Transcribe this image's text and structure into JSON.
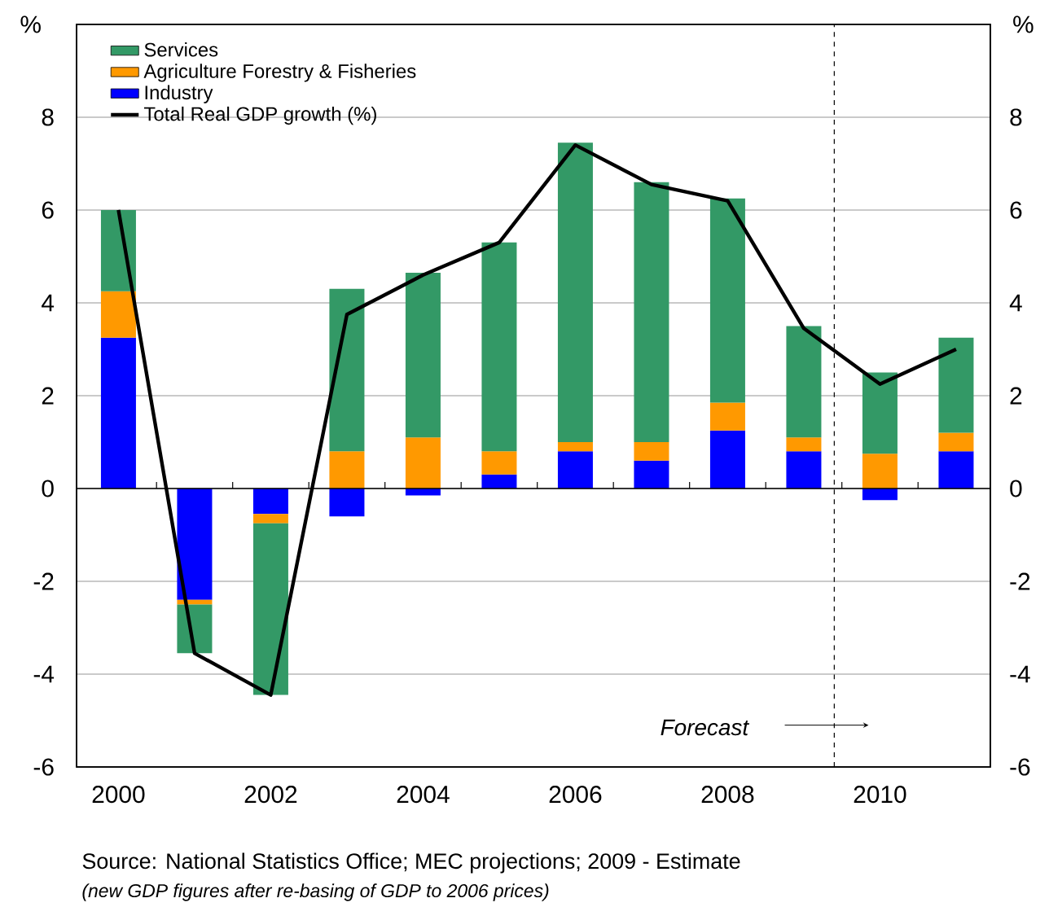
{
  "chart_data": {
    "type": "bar",
    "stacked": true,
    "categories": [
      "2000",
      null,
      "2002",
      null,
      "2004",
      null,
      "2006",
      null,
      "2008",
      null,
      "2010",
      null
    ],
    "series": [
      {
        "name": "Industry",
        "color": "#0000ff",
        "values": [
          3.25,
          -2.4,
          -0.55,
          -0.6,
          -0.15,
          0.3,
          0.8,
          0.6,
          1.25,
          0.8,
          -0.25,
          0.8
        ]
      },
      {
        "name": "Agriculture Forestry & Fisheries",
        "color": "#ff9900",
        "values": [
          1.0,
          -0.1,
          -0.2,
          0.8,
          1.1,
          0.5,
          0.2,
          0.4,
          0.6,
          0.3,
          0.75,
          0.4
        ]
      },
      {
        "name": "Services",
        "color": "#339966",
        "values": [
          1.75,
          -1.05,
          -3.7,
          3.5,
          3.55,
          4.5,
          6.45,
          5.6,
          4.4,
          2.4,
          1.75,
          2.05
        ]
      },
      {
        "name": "Total Real GDP growth (%)",
        "type": "line",
        "color": "#000000",
        "values": [
          6.0,
          -3.55,
          -4.45,
          3.75,
          4.6,
          5.3,
          7.4,
          6.55,
          6.2,
          3.45,
          2.25,
          3.0
        ]
      }
    ],
    "ylabel": "%",
    "y2label": "%",
    "ylim": [
      -6,
      10
    ],
    "yticks": [
      -6,
      -4,
      -2,
      0,
      2,
      4,
      6,
      8
    ],
    "y2lim": [
      -6,
      10
    ],
    "y2ticks": [
      -6,
      -4,
      -2,
      0,
      2,
      4,
      6,
      8
    ],
    "grid": "y",
    "legend": "top left",
    "marker": "none",
    "annotations": [
      "Forecast",
      "Source: National Statistics Office; MEC projections; 2009 - Estimate",
      "(new GDP figures after re-basing of GDP to 2006 prices)"
    ]
  }
}
